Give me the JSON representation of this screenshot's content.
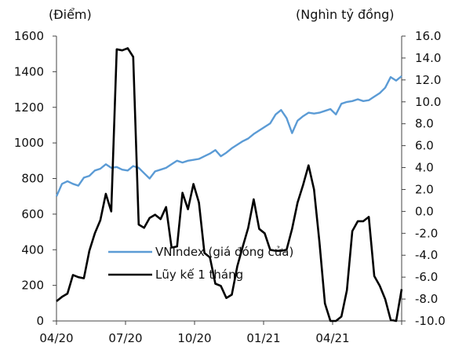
{
  "chart_data": {
    "type": "line",
    "left_unit": "(Điểm)",
    "right_unit": "(Nghìn tỷ đồng)",
    "x_ticks": [
      "04/20",
      "07/20",
      "10/20",
      "01/21",
      "04/21"
    ],
    "left_axis": {
      "ylim": [
        0,
        1600
      ],
      "ticks": [
        "0",
        "200",
        "400",
        "600",
        "800",
        "1000",
        "1200",
        "1400",
        "1600"
      ]
    },
    "right_axis": {
      "ylim": [
        -10,
        16
      ],
      "ticks": [
        "-10.0",
        "-8.0",
        "-6.0",
        "-4.0",
        "-2.0",
        "0.0",
        "2.0",
        "4.0",
        "6.0",
        "8.0",
        "10.0",
        "12.0",
        "14.0",
        "16.0"
      ]
    },
    "legend_position": "center-left",
    "series": [
      {
        "name": "VNIndex (giá đóng cửa)",
        "axis": "left",
        "color": "#5b9bd5",
        "values": [
          700,
          770,
          785,
          770,
          760,
          805,
          815,
          845,
          855,
          880,
          860,
          865,
          850,
          845,
          870,
          860,
          830,
          800,
          840,
          850,
          860,
          880,
          900,
          890,
          900,
          905,
          910,
          925,
          940,
          960,
          925,
          945,
          970,
          990,
          1010,
          1025,
          1050,
          1070,
          1090,
          1110,
          1160,
          1185,
          1140,
          1055,
          1125,
          1150,
          1170,
          1165,
          1170,
          1180,
          1190,
          1160,
          1220,
          1230,
          1235,
          1245,
          1235,
          1240,
          1260,
          1280,
          1310,
          1370,
          1350,
          1375
        ]
      },
      {
        "name": "Lũy kế 1 tháng",
        "axis": "right",
        "color": "#000000",
        "values": [
          -8.2,
          -7.8,
          -7.5,
          -5.8,
          -6.0,
          -6.1,
          -3.6,
          -2.0,
          -0.8,
          1.6,
          0.0,
          14.8,
          14.7,
          14.9,
          14.1,
          -1.2,
          -1.5,
          -0.6,
          -0.3,
          -0.7,
          0.4,
          -3.3,
          -3.2,
          1.7,
          0.2,
          2.5,
          0.8,
          -3.8,
          -4.2,
          -6.6,
          -6.8,
          -7.9,
          -7.6,
          -5.0,
          -3.2,
          -1.5,
          1.1,
          -1.6,
          -2.0,
          -3.5,
          -3.6,
          -3.6,
          -3.5,
          -1.6,
          0.8,
          2.4,
          4.2,
          2.0,
          -2.8,
          -8.4,
          -10.5,
          -10.4,
          -9.6,
          -7.2,
          -1.8,
          -0.9,
          -0.9,
          -0.5,
          -5.9,
          -6.8,
          -8.0,
          -9.9,
          -10.0,
          -7.1
        ]
      }
    ]
  }
}
